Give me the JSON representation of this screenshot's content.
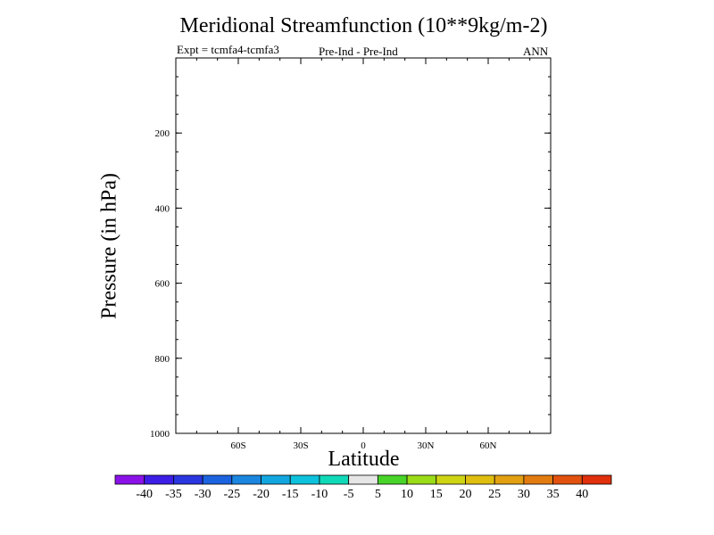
{
  "chart_data": {
    "type": "contour",
    "title": "Meridional Streamfunction (10**9kg/m-2)",
    "left_string": "Expt = tcmfa4-tcmfa3",
    "center_string": "Pre-Ind - Pre-Ind",
    "right_string": "ANN",
    "xlabel": "Latitude",
    "ylabel": "Pressure (in hPa)",
    "xlim": [
      -90,
      90
    ],
    "ylim": [
      0,
      1000
    ],
    "y_inverted": true,
    "x_ticks": [
      {
        "value": -60,
        "label": "60S"
      },
      {
        "value": -30,
        "label": "30S"
      },
      {
        "value": 0,
        "label": "0"
      },
      {
        "value": 30,
        "label": "30N"
      },
      {
        "value": 60,
        "label": "60N"
      }
    ],
    "x_minor_step": 10,
    "y_ticks": [
      {
        "value": 200,
        "label": "200"
      },
      {
        "value": 400,
        "label": "400"
      },
      {
        "value": 600,
        "label": "600"
      },
      {
        "value": 800,
        "label": "800"
      },
      {
        "value": 1000,
        "label": "1000"
      }
    ],
    "y_minor_step": 50,
    "data": [],
    "colorbar": {
      "levels": [
        "-40",
        "-35",
        "-30",
        "-25",
        "-20",
        "-15",
        "-10",
        "-5",
        "5",
        "10",
        "15",
        "20",
        "25",
        "30",
        "35",
        "40"
      ],
      "colors": [
        "#8a12e8",
        "#3d1ee6",
        "#2a36e0",
        "#1c63df",
        "#1a86e0",
        "#12a7e0",
        "#0ec2dd",
        "#10d9b8",
        "#e6e6e6",
        "#48d428",
        "#9bdc18",
        "#cfd414",
        "#e0be10",
        "#e2a012",
        "#e27c10",
        "#e2520e",
        "#e0300c"
      ]
    }
  }
}
